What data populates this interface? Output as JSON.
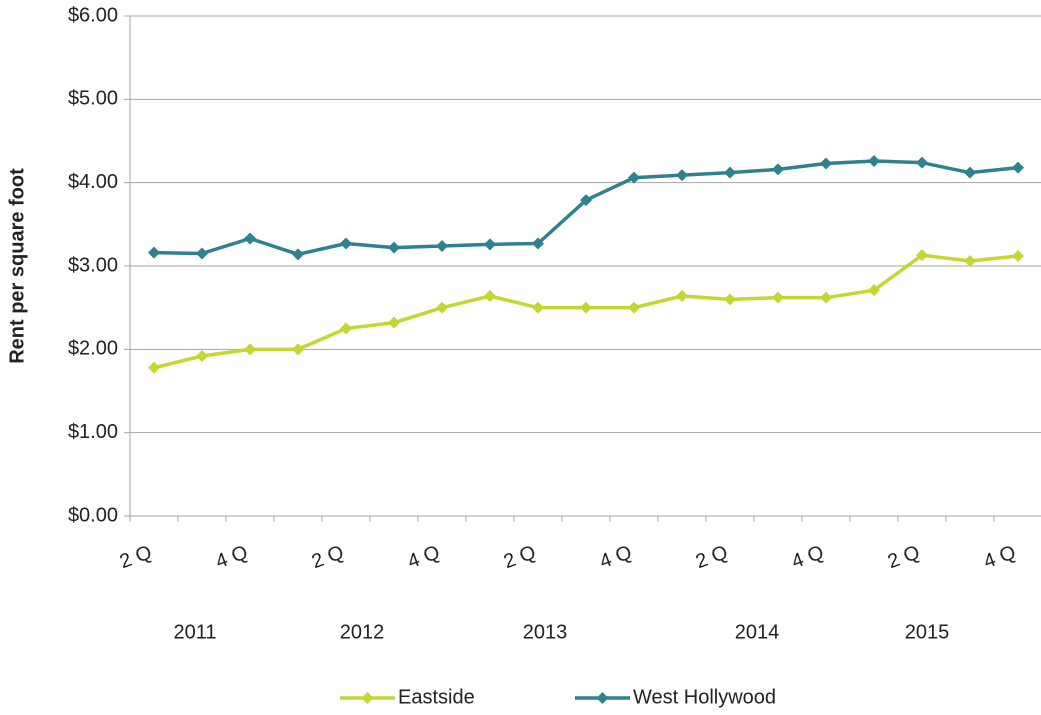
{
  "chart_data": {
    "type": "line",
    "y_label": "Rent per square foot",
    "categories": [
      "2 Q",
      null,
      "4 Q",
      null,
      "2 Q",
      null,
      "4 Q",
      null,
      "2 Q",
      null,
      "4 Q",
      null,
      "2 Q",
      null,
      "4 Q",
      null,
      "2 Q",
      null,
      "4 Q"
    ],
    "x_group_labels": [
      "2011",
      "2012",
      "2013",
      "2014",
      "2015"
    ],
    "series": [
      {
        "name": "Eastside",
        "color": "#c5d531",
        "values": [
          1.78,
          1.92,
          2.0,
          2.0,
          2.25,
          2.32,
          2.5,
          2.64,
          2.5,
          2.5,
          2.5,
          2.64,
          2.6,
          2.62,
          2.62,
          2.71,
          3.13,
          3.06,
          3.12
        ]
      },
      {
        "name": "West Hollywood",
        "color": "#2e8190",
        "values": [
          3.16,
          3.15,
          3.33,
          3.14,
          3.27,
          3.22,
          3.24,
          3.26,
          3.27,
          3.79,
          4.06,
          4.09,
          4.12,
          4.16,
          4.23,
          4.26,
          4.24,
          4.12,
          4.18
        ]
      }
    ],
    "ylim": [
      0,
      6
    ],
    "yticks": [
      {
        "value": 0,
        "label": "$0.00"
      },
      {
        "value": 1,
        "label": "$1.00"
      },
      {
        "value": 2,
        "label": "$2.00"
      },
      {
        "value": 3,
        "label": "$3.00"
      },
      {
        "value": 4,
        "label": "$4.00"
      },
      {
        "value": 5,
        "label": "$5.00"
      },
      {
        "value": 6,
        "label": "$6.00"
      }
    ],
    "grid": true,
    "legend": "bottom"
  }
}
